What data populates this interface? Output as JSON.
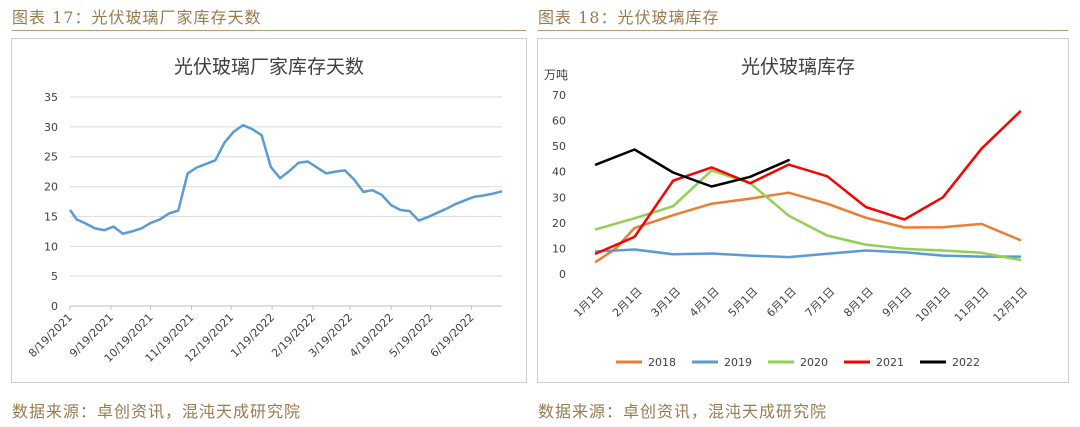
{
  "left": {
    "caption": "图表 17：光伏玻璃厂家库存天数",
    "source": "数据来源：卓创资讯，混沌天成研究院"
  },
  "right": {
    "caption": "图表 18：光伏玻璃库存",
    "source": "数据来源：卓创资讯，混沌天成研究院"
  },
  "colors": {
    "caption": "#9a7b4f",
    "rule": "#b89a6e"
  },
  "chart_data": [
    {
      "type": "line",
      "title": "光伏玻璃厂家库存天数",
      "xlabel": "",
      "ylabel": "",
      "ylim": [
        0,
        35
      ],
      "yticks": [
        0,
        5,
        10,
        15,
        20,
        25,
        30,
        35
      ],
      "grid": true,
      "xtick_labels": [
        "8/19/2021",
        "9/19/2021",
        "10/19/2021",
        "11/19/2021",
        "12/19/2021",
        "1/19/2022",
        "2/19/2022",
        "3/19/2022",
        "4/19/2022",
        "5/19/2022",
        "6/19/2022"
      ],
      "series": [
        {
          "color": "#5b9bd5",
          "points": [
            [
              "2021-08-19",
              16.1
            ],
            [
              "2021-08-24",
              14.5
            ],
            [
              "2021-08-31",
              13.8
            ],
            [
              "2021-09-07",
              13.0
            ],
            [
              "2021-09-14",
              12.7
            ],
            [
              "2021-09-21",
              13.3
            ],
            [
              "2021-09-28",
              12.1
            ],
            [
              "2021-10-05",
              12.5
            ],
            [
              "2021-10-12",
              13.0
            ],
            [
              "2021-10-19",
              13.9
            ],
            [
              "2021-10-26",
              14.5
            ],
            [
              "2021-11-02",
              15.5
            ],
            [
              "2021-11-09",
              16.0
            ],
            [
              "2021-11-16",
              22.2
            ],
            [
              "2021-11-23",
              23.2
            ],
            [
              "2021-11-30",
              23.8
            ],
            [
              "2021-12-07",
              24.4
            ],
            [
              "2021-12-14",
              27.4
            ],
            [
              "2021-12-21",
              29.2
            ],
            [
              "2021-12-28",
              30.3
            ],
            [
              "2022-01-04",
              29.6
            ],
            [
              "2022-01-11",
              28.6
            ],
            [
              "2022-01-18",
              23.3
            ],
            [
              "2022-01-25",
              21.4
            ],
            [
              "2022-02-01",
              22.6
            ],
            [
              "2022-02-08",
              24.0
            ],
            [
              "2022-02-15",
              24.2
            ],
            [
              "2022-02-22",
              23.2
            ],
            [
              "2022-03-01",
              22.2
            ],
            [
              "2022-03-08",
              22.5
            ],
            [
              "2022-03-15",
              22.7
            ],
            [
              "2022-03-22",
              21.2
            ],
            [
              "2022-03-29",
              19.1
            ],
            [
              "2022-04-05",
              19.4
            ],
            [
              "2022-04-12",
              18.6
            ],
            [
              "2022-04-19",
              16.9
            ],
            [
              "2022-04-26",
              16.1
            ],
            [
              "2022-05-03",
              15.9
            ],
            [
              "2022-05-10",
              14.3
            ],
            [
              "2022-05-17",
              14.9
            ],
            [
              "2022-05-24",
              15.6
            ],
            [
              "2022-05-31",
              16.3
            ],
            [
              "2022-06-07",
              17.1
            ],
            [
              "2022-06-14",
              17.7
            ],
            [
              "2022-06-21",
              18.3
            ],
            [
              "2022-06-28",
              18.5
            ],
            [
              "2022-07-05",
              18.8
            ],
            [
              "2022-07-12",
              19.2
            ]
          ]
        }
      ]
    },
    {
      "type": "line",
      "title": "光伏玻璃库存",
      "ylabel": "万吨",
      "xlabel": "",
      "ylim": [
        0,
        70
      ],
      "yticks": [
        0,
        10,
        20,
        30,
        40,
        50,
        60,
        70
      ],
      "grid": false,
      "legend_position": "bottom",
      "categories": [
        "1月1日",
        "2月1日",
        "3月1日",
        "4月1日",
        "5月1日",
        "6月1日",
        "7月1日",
        "8月1日",
        "9月1日",
        "10月1日",
        "11月1日",
        "12月1日"
      ],
      "series": [
        {
          "name": "2018",
          "color": "#ed7d31",
          "x": [
            0,
            0.5,
            1,
            2,
            3,
            4,
            5,
            6,
            7,
            8,
            9,
            10,
            11
          ],
          "values": [
            4.8,
            9.8,
            18,
            23,
            27.5,
            29.5,
            31.8,
            27.5,
            22,
            18.2,
            18.3,
            19.6,
            13.3
          ]
        },
        {
          "name": "2019",
          "color": "#5b9bd5",
          "x": [
            0,
            1,
            2,
            3,
            4,
            5,
            6,
            7,
            8,
            9,
            10,
            11
          ],
          "values": [
            8.8,
            9.6,
            7.7,
            8,
            7.2,
            6.6,
            7.9,
            9.2,
            8.5,
            7.2,
            6.8,
            6.8
          ]
        },
        {
          "name": "2020",
          "color": "#92d050",
          "x": [
            0,
            1,
            2,
            3,
            4,
            5,
            6,
            7,
            8,
            9,
            10,
            11
          ],
          "values": [
            17.5,
            21.8,
            26.5,
            40.5,
            35.5,
            22.8,
            15,
            11.5,
            9.8,
            9.2,
            8.3,
            5.5
          ]
        },
        {
          "name": "2021",
          "color": "#ff0000",
          "x": [
            0,
            1,
            2,
            3,
            4,
            5,
            6,
            7,
            8,
            9,
            10,
            11
          ],
          "values": [
            8,
            14.5,
            36.5,
            41.7,
            35.5,
            42.8,
            38.2,
            26.2,
            21.3,
            30,
            49,
            63.5
          ]
        },
        {
          "name": "2022",
          "color": "#000000",
          "x": [
            0,
            1,
            2,
            3,
            4,
            5
          ],
          "values": [
            42.8,
            48.7,
            39.7,
            34.2,
            38,
            44.5
          ]
        }
      ]
    }
  ]
}
